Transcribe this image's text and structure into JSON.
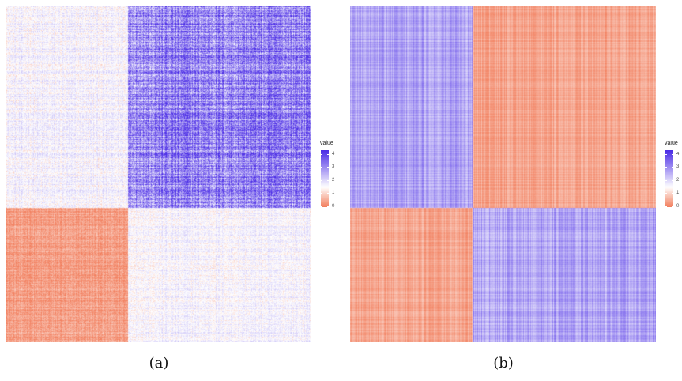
{
  "chart_data": [
    {
      "type": "heatmap",
      "panel": "(a)",
      "legend_title": "value",
      "color_scale": {
        "low": "#f2805f",
        "mid": "#ffffff",
        "high": "#4b2de6",
        "midpoint": 1.5,
        "range": [
          0,
          4.3
        ]
      },
      "legend_ticks": [
        0,
        1,
        2,
        3,
        4
      ],
      "blocks": [
        {
          "rows": "top",
          "cols": "left",
          "approx_mean": 1.6,
          "approx_spread": 0.45
        },
        {
          "rows": "top",
          "cols": "right",
          "approx_mean": 3.1,
          "approx_spread": 1.1
        },
        {
          "rows": "bottom",
          "cols": "left",
          "approx_mean": 0.35,
          "approx_spread": 0.35
        },
        {
          "rows": "bottom",
          "cols": "right",
          "approx_mean": 1.6,
          "approx_spread": 0.4
        }
      ],
      "split": {
        "col_fraction": 0.4,
        "row_fraction": 0.6
      },
      "legend_position": "right"
    },
    {
      "type": "heatmap",
      "panel": "(b)",
      "legend_title": "value",
      "color_scale": {
        "low": "#f2805f",
        "mid": "#ffffff",
        "high": "#4b2de6",
        "midpoint": 1.5,
        "range": [
          0,
          4.3
        ]
      },
      "legend_ticks": [
        0,
        1,
        2,
        3,
        4
      ],
      "blocks": [
        {
          "rows": "top",
          "cols": "left",
          "approx_mean": 2.7,
          "approx_spread": 0.6
        },
        {
          "rows": "top",
          "cols": "right",
          "approx_mean": 0.45,
          "approx_spread": 0.35
        },
        {
          "rows": "bottom",
          "cols": "left",
          "approx_mean": 0.45,
          "approx_spread": 0.35
        },
        {
          "rows": "bottom",
          "cols": "right",
          "approx_mean": 2.7,
          "approx_spread": 0.6
        }
      ],
      "split": {
        "col_fraction": 0.4,
        "row_fraction": 0.6
      },
      "legend_position": "right"
    }
  ],
  "captions": {
    "a": "(a)",
    "b": "(b)"
  },
  "legend": {
    "title": "value",
    "ticks": [
      "0",
      "1",
      "2",
      "3",
      "4"
    ]
  }
}
